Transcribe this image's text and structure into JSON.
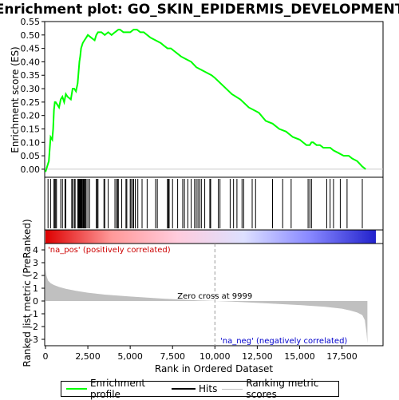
{
  "chart_data": [
    {
      "type": "line",
      "title": "Enrichment plot: GO_SKIN_EPIDERMIS_DEVELOPMENT",
      "ylabel": "Enrichment score (ES)",
      "ylim": [
        -0.03,
        0.55
      ],
      "yticks": [
        "0.55",
        "0.50",
        "0.45",
        "0.40",
        "0.35",
        "0.30",
        "0.25",
        "0.20",
        "0.15",
        "0.10",
        "0.05",
        "0.00"
      ],
      "ytick_values": [
        0.55,
        0.5,
        0.45,
        0.4,
        0.35,
        0.3,
        0.25,
        0.2,
        0.15,
        0.1,
        0.05,
        0.0
      ],
      "xlim": [
        0,
        19500
      ],
      "series": [
        {
          "name": "Enrichment profile",
          "color": "#00ff00",
          "x": [
            0,
            200,
            300,
            400,
            450,
            500,
            550,
            600,
            700,
            800,
            900,
            1000,
            1100,
            1200,
            1300,
            1500,
            1600,
            1700,
            1800,
            1900,
            1950,
            2000,
            2050,
            2100,
            2200,
            2300,
            2400,
            2500,
            2700,
            2900,
            3000,
            3100,
            3300,
            3500,
            3700,
            3900,
            4100,
            4300,
            4400,
            4600,
            4800,
            5000,
            5200,
            5400,
            5600,
            5800,
            6000,
            6200,
            6500,
            6800,
            7000,
            7200,
            7400,
            7600,
            7800,
            8000,
            8300,
            8600,
            8900,
            9200,
            9500,
            9800,
            10000,
            10500,
            11000,
            11500,
            12000,
            12300,
            12600,
            13000,
            13400,
            13800,
            14200,
            14600,
            15000,
            15400,
            15600,
            15700,
            15800,
            16000,
            16200,
            16400,
            16600,
            16800,
            17000,
            17300,
            17600,
            17900,
            18100,
            18400,
            18700,
            18900
          ],
          "values": [
            -0.01,
            0.03,
            0.12,
            0.11,
            0.15,
            0.22,
            0.25,
            0.25,
            0.24,
            0.23,
            0.26,
            0.27,
            0.25,
            0.28,
            0.27,
            0.26,
            0.3,
            0.3,
            0.29,
            0.32,
            0.36,
            0.4,
            0.42,
            0.45,
            0.47,
            0.48,
            0.49,
            0.5,
            0.49,
            0.48,
            0.5,
            0.51,
            0.51,
            0.5,
            0.51,
            0.5,
            0.51,
            0.52,
            0.52,
            0.51,
            0.51,
            0.51,
            0.52,
            0.52,
            0.51,
            0.51,
            0.5,
            0.49,
            0.48,
            0.47,
            0.46,
            0.45,
            0.45,
            0.44,
            0.43,
            0.42,
            0.41,
            0.4,
            0.38,
            0.37,
            0.36,
            0.35,
            0.34,
            0.31,
            0.28,
            0.26,
            0.23,
            0.22,
            0.21,
            0.18,
            0.17,
            0.15,
            0.14,
            0.12,
            0.11,
            0.09,
            0.09,
            0.1,
            0.1,
            0.09,
            0.09,
            0.08,
            0.08,
            0.08,
            0.07,
            0.06,
            0.05,
            0.05,
            0.04,
            0.03,
            0.01,
            0.0
          ]
        }
      ]
    },
    {
      "type": "hits",
      "series": [
        {
          "name": "Hits",
          "color": "#000000",
          "x": [
            150,
            300,
            500,
            550,
            600,
            650,
            900,
            1000,
            1150,
            1200,
            1550,
            1600,
            1700,
            1750,
            1900,
            1950,
            1980,
            2000,
            2030,
            2060,
            2090,
            2120,
            2150,
            2200,
            2230,
            2260,
            2300,
            2350,
            2400,
            2500,
            2600,
            3000,
            3050,
            3100,
            3450,
            3500,
            3700,
            4100,
            4200,
            4250,
            4300,
            4500,
            4750,
            4800,
            5000,
            5050,
            5150,
            5200,
            5300,
            5450,
            5700,
            6000,
            6500,
            6600,
            7200,
            7250,
            7300,
            7500,
            7800,
            8100,
            8200,
            8400,
            8600,
            8800,
            8900,
            9000,
            9100,
            9200,
            9400,
            9700,
            9750,
            10200,
            10300,
            10900,
            11100,
            11300,
            11600,
            11700,
            12200,
            12400,
            13400,
            14000,
            14500,
            15500,
            15600,
            15700,
            16600,
            16800,
            17000,
            17400,
            17800,
            18700
          ]
        }
      ]
    },
    {
      "type": "heatbar",
      "series": [
        {
          "name": "Ranked list gradient",
          "stops": [
            "#dd0000",
            "#ff9999",
            "#ffccdd",
            "#dde0ff",
            "#8888ff",
            "#2222cc"
          ]
        }
      ]
    },
    {
      "type": "area",
      "ylabel": "Ranked list metric (PreRanked)",
      "xlabel": "Rank in Ordered Dataset",
      "ylim": [
        -3.5,
        4.5
      ],
      "yticks": [
        "4",
        "3",
        "2",
        "1",
        "0",
        "-1",
        "-2",
        "-3"
      ],
      "ytick_values": [
        4,
        3,
        2,
        1,
        0,
        -1,
        -2,
        -3
      ],
      "xlim": [
        0,
        19500
      ],
      "xticks": [
        "0",
        "2,500",
        "5,000",
        "7,500",
        "10,000",
        "12,500",
        "15,000",
        "17,500"
      ],
      "xtick_values": [
        0,
        2500,
        5000,
        7500,
        10000,
        12500,
        15000,
        17500
      ],
      "series": [
        {
          "name": "Ranking metric scores",
          "color": "#c0c0c0",
          "x": [
            0,
            50,
            150,
            300,
            500,
            800,
            1200,
            1800,
            2500,
            3500,
            5000,
            7000,
            9000,
            9999,
            11000,
            13000,
            15000,
            16500,
            17500,
            18000,
            18400,
            18700,
            18850,
            18950,
            19000
          ],
          "values": [
            2.5,
            2.0,
            1.6,
            1.4,
            1.25,
            1.1,
            0.95,
            0.8,
            0.65,
            0.5,
            0.35,
            0.18,
            0.05,
            0.0,
            -0.05,
            -0.18,
            -0.32,
            -0.45,
            -0.6,
            -0.75,
            -0.9,
            -1.1,
            -1.5,
            -2.5,
            -3.3
          ]
        }
      ],
      "annotations": {
        "zero_cross": "Zero cross at 9999",
        "zero_cross_x": 9999,
        "pos_label": "'na_pos' (positively correlated)",
        "neg_label": "'na_neg' (negatively correlated)",
        "pos_color": "#cc0000",
        "neg_color": "#0000cc"
      }
    }
  ],
  "legend": {
    "items": [
      {
        "label": "Enrichment profile",
        "color": "#00ff00"
      },
      {
        "label": "Hits",
        "color": "#000000"
      },
      {
        "label": "Ranking metric scores",
        "color": "#c0c0c0"
      }
    ]
  }
}
